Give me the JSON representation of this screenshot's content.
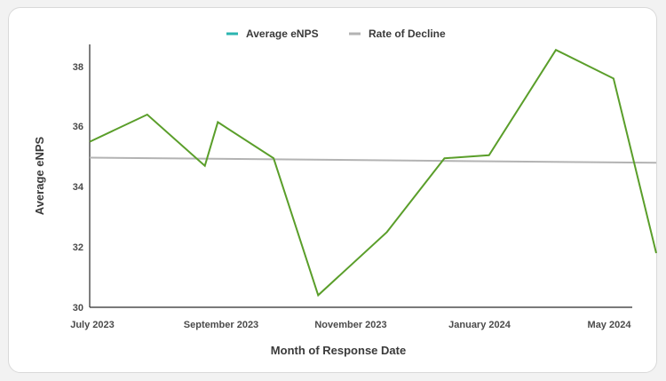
{
  "chart_data": {
    "type": "line",
    "title": "",
    "xlabel": "Month of Response Date",
    "ylabel": "Average eNPS",
    "ylim": [
      30,
      38.8
    ],
    "yticks": [
      30,
      32,
      34,
      36,
      38
    ],
    "x_tick_labels": [
      "July 2023",
      "September 2023",
      "November 2023",
      "January 2024",
      "May 2024"
    ],
    "legend_position": "top-center",
    "grid": false,
    "series": [
      {
        "name": "Average eNPS",
        "color": "#5a9e2a",
        "legend_color": "#2bb5b0",
        "points": [
          {
            "date": "2023-07-01",
            "y": 35.5
          },
          {
            "date": "2023-08-01",
            "y": 36.4
          },
          {
            "date": "2023-09-01",
            "y": 34.7
          },
          {
            "date": "2023-09-08",
            "y": 36.15
          },
          {
            "date": "2023-10-08",
            "y": 34.95
          },
          {
            "date": "2023-11-01",
            "y": 30.4
          },
          {
            "date": "2023-12-08",
            "y": 32.5
          },
          {
            "date": "2024-01-08",
            "y": 34.95
          },
          {
            "date": "2024-02-01",
            "y": 35.05
          },
          {
            "date": "2024-03-08",
            "y": 38.55
          },
          {
            "date": "2024-04-08",
            "y": 37.6
          },
          {
            "date": "2024-05-01",
            "y": 31.8
          }
        ]
      },
      {
        "name": "Rate of Decline",
        "color": "#b3b3b3",
        "points": [
          {
            "date": "2023-07-01",
            "y": 34.97
          },
          {
            "date": "2024-05-01",
            "y": 34.8
          }
        ]
      }
    ]
  }
}
